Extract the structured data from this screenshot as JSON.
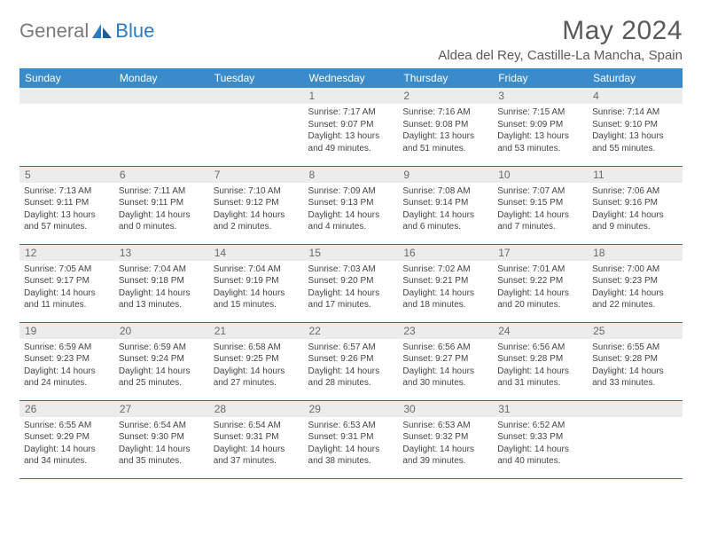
{
  "brand": {
    "text1": "General",
    "text2": "Blue"
  },
  "title": "May 2024",
  "location": "Aldea del Rey, Castille-La Mancha, Spain",
  "colors": {
    "header_bg": "#3a8bc9",
    "header_text": "#ffffff",
    "daynum_bg": "#ececec",
    "daynum_text": "#6a6a6a",
    "body_text": "#444444",
    "rule": "#2a6ca8",
    "logo_gray": "#7a7a7a",
    "logo_blue": "#2a7bbf"
  },
  "weekdays": [
    "Sunday",
    "Monday",
    "Tuesday",
    "Wednesday",
    "Thursday",
    "Friday",
    "Saturday"
  ],
  "weeks": [
    [
      null,
      null,
      null,
      {
        "n": "1",
        "sr": "7:17 AM",
        "ss": "9:07 PM",
        "dl": "13 hours and 49 minutes."
      },
      {
        "n": "2",
        "sr": "7:16 AM",
        "ss": "9:08 PM",
        "dl": "13 hours and 51 minutes."
      },
      {
        "n": "3",
        "sr": "7:15 AM",
        "ss": "9:09 PM",
        "dl": "13 hours and 53 minutes."
      },
      {
        "n": "4",
        "sr": "7:14 AM",
        "ss": "9:10 PM",
        "dl": "13 hours and 55 minutes."
      }
    ],
    [
      {
        "n": "5",
        "sr": "7:13 AM",
        "ss": "9:11 PM",
        "dl": "13 hours and 57 minutes."
      },
      {
        "n": "6",
        "sr": "7:11 AM",
        "ss": "9:11 PM",
        "dl": "14 hours and 0 minutes."
      },
      {
        "n": "7",
        "sr": "7:10 AM",
        "ss": "9:12 PM",
        "dl": "14 hours and 2 minutes."
      },
      {
        "n": "8",
        "sr": "7:09 AM",
        "ss": "9:13 PM",
        "dl": "14 hours and 4 minutes."
      },
      {
        "n": "9",
        "sr": "7:08 AM",
        "ss": "9:14 PM",
        "dl": "14 hours and 6 minutes."
      },
      {
        "n": "10",
        "sr": "7:07 AM",
        "ss": "9:15 PM",
        "dl": "14 hours and 7 minutes."
      },
      {
        "n": "11",
        "sr": "7:06 AM",
        "ss": "9:16 PM",
        "dl": "14 hours and 9 minutes."
      }
    ],
    [
      {
        "n": "12",
        "sr": "7:05 AM",
        "ss": "9:17 PM",
        "dl": "14 hours and 11 minutes."
      },
      {
        "n": "13",
        "sr": "7:04 AM",
        "ss": "9:18 PM",
        "dl": "14 hours and 13 minutes."
      },
      {
        "n": "14",
        "sr": "7:04 AM",
        "ss": "9:19 PM",
        "dl": "14 hours and 15 minutes."
      },
      {
        "n": "15",
        "sr": "7:03 AM",
        "ss": "9:20 PM",
        "dl": "14 hours and 17 minutes."
      },
      {
        "n": "16",
        "sr": "7:02 AM",
        "ss": "9:21 PM",
        "dl": "14 hours and 18 minutes."
      },
      {
        "n": "17",
        "sr": "7:01 AM",
        "ss": "9:22 PM",
        "dl": "14 hours and 20 minutes."
      },
      {
        "n": "18",
        "sr": "7:00 AM",
        "ss": "9:23 PM",
        "dl": "14 hours and 22 minutes."
      }
    ],
    [
      {
        "n": "19",
        "sr": "6:59 AM",
        "ss": "9:23 PM",
        "dl": "14 hours and 24 minutes."
      },
      {
        "n": "20",
        "sr": "6:59 AM",
        "ss": "9:24 PM",
        "dl": "14 hours and 25 minutes."
      },
      {
        "n": "21",
        "sr": "6:58 AM",
        "ss": "9:25 PM",
        "dl": "14 hours and 27 minutes."
      },
      {
        "n": "22",
        "sr": "6:57 AM",
        "ss": "9:26 PM",
        "dl": "14 hours and 28 minutes."
      },
      {
        "n": "23",
        "sr": "6:56 AM",
        "ss": "9:27 PM",
        "dl": "14 hours and 30 minutes."
      },
      {
        "n": "24",
        "sr": "6:56 AM",
        "ss": "9:28 PM",
        "dl": "14 hours and 31 minutes."
      },
      {
        "n": "25",
        "sr": "6:55 AM",
        "ss": "9:28 PM",
        "dl": "14 hours and 33 minutes."
      }
    ],
    [
      {
        "n": "26",
        "sr": "6:55 AM",
        "ss": "9:29 PM",
        "dl": "14 hours and 34 minutes."
      },
      {
        "n": "27",
        "sr": "6:54 AM",
        "ss": "9:30 PM",
        "dl": "14 hours and 35 minutes."
      },
      {
        "n": "28",
        "sr": "6:54 AM",
        "ss": "9:31 PM",
        "dl": "14 hours and 37 minutes."
      },
      {
        "n": "29",
        "sr": "6:53 AM",
        "ss": "9:31 PM",
        "dl": "14 hours and 38 minutes."
      },
      {
        "n": "30",
        "sr": "6:53 AM",
        "ss": "9:32 PM",
        "dl": "14 hours and 39 minutes."
      },
      {
        "n": "31",
        "sr": "6:52 AM",
        "ss": "9:33 PM",
        "dl": "14 hours and 40 minutes."
      },
      null
    ]
  ],
  "labels": {
    "sunrise": "Sunrise:",
    "sunset": "Sunset:",
    "daylight": "Daylight:"
  }
}
